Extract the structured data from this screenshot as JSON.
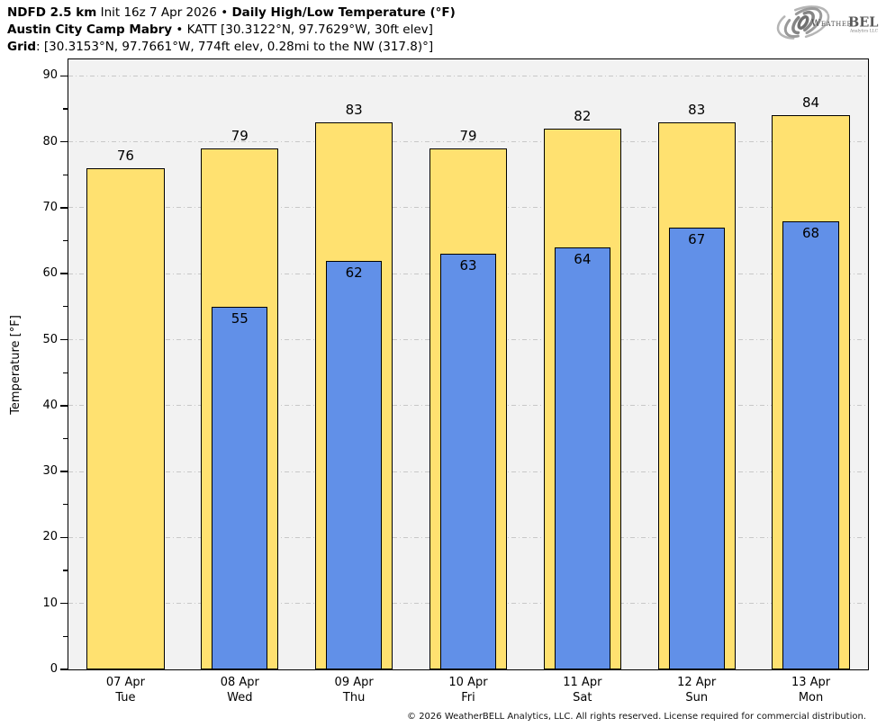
{
  "header": {
    "line1_bold1": "NDFD 2.5 km",
    "line1_text1": " Init 16z 7 Apr 2026 • ",
    "line1_bold2": "Daily High/Low Temperature (°F)",
    "line2_bold1": "Austin City Camp Mabry",
    "line2_text1": " • KATT [30.3122°N, 97.7629°W, 30ft elev]",
    "line3_bold1": "Grid",
    "line3_text1": ": [30.3153°N, 97.7661°W, 774ft elev, 0.28mi to the NW (317.8)°]"
  },
  "logo": {
    "weather": "Weather",
    "bell": "BELL",
    "sub": "Analytics LLC"
  },
  "chart_data": {
    "type": "bar",
    "title": "Daily High/Low Temperature (°F)",
    "categories": [
      "07 Apr",
      "08 Apr",
      "09 Apr",
      "10 Apr",
      "11 Apr",
      "12 Apr",
      "13 Apr"
    ],
    "weekdays": [
      "Tue",
      "Wed",
      "Thu",
      "Fri",
      "Sat",
      "Sun",
      "Mon"
    ],
    "series": [
      {
        "name": "High",
        "color": "#FFE170",
        "border": "#000000",
        "values": [
          76,
          79,
          83,
          79,
          82,
          83,
          84
        ]
      },
      {
        "name": "Low",
        "color": "#6190E8",
        "border": "#000000",
        "values": [
          null,
          55,
          62,
          63,
          64,
          67,
          68
        ]
      }
    ],
    "xlabel": "",
    "ylabel": "Temperature [°F]",
    "ylim": [
      0,
      92.5
    ],
    "yticks": [
      0,
      10,
      20,
      30,
      40,
      50,
      60,
      70,
      80,
      90
    ],
    "minor_yticks": [
      5,
      15,
      25,
      35,
      45,
      55,
      65,
      75,
      85
    ],
    "grid": true,
    "legend": "none",
    "plot_bg": "#F2F2F2",
    "grid_color": "#C8C8C8"
  },
  "footer": {
    "copyright": "© 2026 WeatherBELL Analytics, LLC. All rights reserved. License required for commercial distribution."
  }
}
